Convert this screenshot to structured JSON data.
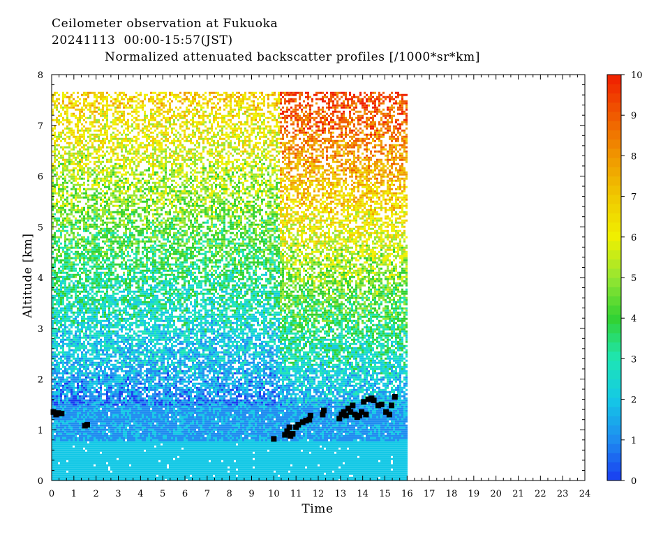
{
  "header": {
    "line1": "Ceilometer observation at Fukuoka",
    "line2": "20241113  00:00-15:57(JST)",
    "line3": "Normalized attenuated backscatter profiles [/1000*sr*km]"
  },
  "chart_data": {
    "type": "heatmap",
    "xlabel": "Time",
    "ylabel": "Altitude [km]",
    "xlim": [
      0,
      24
    ],
    "ylim": [
      0,
      8
    ],
    "x_ticks": [
      "0",
      "1",
      "2",
      "3",
      "4",
      "5",
      "6",
      "7",
      "8",
      "9",
      "10",
      "11",
      "12",
      "13",
      "14",
      "15",
      "16",
      "17",
      "18",
      "19",
      "20",
      "21",
      "22",
      "23",
      "24"
    ],
    "y_ticks": [
      "0",
      "1",
      "2",
      "3",
      "4",
      "5",
      "6",
      "7",
      "8"
    ],
    "data_extent": {
      "time_end": 15.95,
      "max_altitude": 7.66
    },
    "colorbar": {
      "min": 0,
      "max": 10,
      "ticks": [
        "0",
        "1",
        "2",
        "3",
        "4",
        "5",
        "6",
        "7",
        "8",
        "9",
        "10"
      ],
      "colors": [
        "#1a3cf0",
        "#1e8cf0",
        "#14c8e6",
        "#1ee6b4",
        "#32d232",
        "#96e632",
        "#f0f000",
        "#f0c800",
        "#f09600",
        "#f05a00",
        "#f01e00"
      ]
    },
    "cloud_base_points": [
      [
        0.08,
        1.35
      ],
      [
        0.2,
        1.3
      ],
      [
        0.3,
        1.33
      ],
      [
        0.45,
        1.32
      ],
      [
        1.5,
        1.08
      ],
      [
        1.6,
        1.1
      ],
      [
        10.0,
        0.82
      ],
      [
        10.5,
        0.9
      ],
      [
        10.6,
        0.97
      ],
      [
        10.7,
        1.05
      ],
      [
        10.75,
        0.88
      ],
      [
        10.85,
        0.92
      ],
      [
        11.0,
        1.05
      ],
      [
        11.1,
        1.1
      ],
      [
        11.3,
        1.15
      ],
      [
        11.45,
        1.18
      ],
      [
        11.6,
        1.2
      ],
      [
        11.65,
        1.28
      ],
      [
        12.2,
        1.3
      ],
      [
        12.25,
        1.38
      ],
      [
        12.95,
        1.22
      ],
      [
        13.05,
        1.3
      ],
      [
        13.15,
        1.35
      ],
      [
        13.25,
        1.28
      ],
      [
        13.35,
        1.42
      ],
      [
        13.45,
        1.35
      ],
      [
        13.55,
        1.48
      ],
      [
        13.65,
        1.3
      ],
      [
        13.75,
        1.25
      ],
      [
        13.85,
        1.28
      ],
      [
        13.95,
        1.35
      ],
      [
        14.05,
        1.55
      ],
      [
        14.15,
        1.3
      ],
      [
        14.25,
        1.6
      ],
      [
        14.4,
        1.62
      ],
      [
        14.5,
        1.58
      ],
      [
        14.7,
        1.48
      ],
      [
        14.85,
        1.5
      ],
      [
        15.05,
        1.35
      ],
      [
        15.2,
        1.3
      ],
      [
        15.3,
        1.48
      ],
      [
        15.45,
        1.65
      ]
    ]
  }
}
